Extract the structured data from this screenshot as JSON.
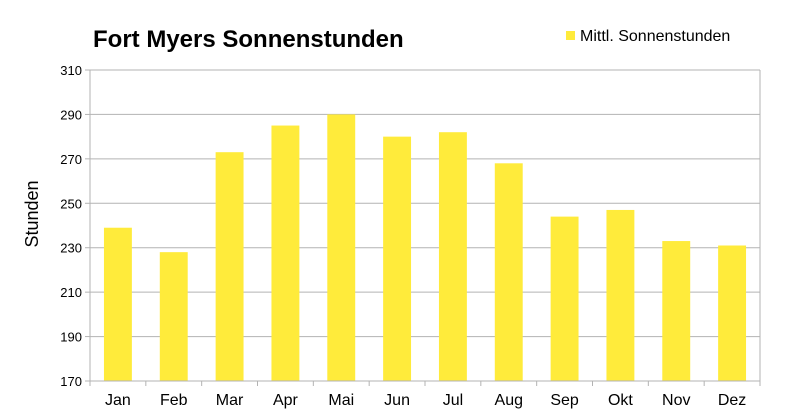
{
  "chart_data": {
    "type": "bar",
    "title": "Fort Myers Sonnenstunden",
    "xlabel": "",
    "ylabel": "Stunden",
    "categories": [
      "Jan",
      "Feb",
      "Mar",
      "Apr",
      "Mai",
      "Jun",
      "Jul",
      "Aug",
      "Sep",
      "Okt",
      "Nov",
      "Dez"
    ],
    "series": [
      {
        "name": "Mittl. Sonnenstunden",
        "color": "#ffeb3b",
        "values": [
          239,
          228,
          273,
          285,
          290,
          280,
          282,
          268,
          244,
          247,
          233,
          231
        ]
      }
    ],
    "ylim": [
      170,
      310
    ],
    "yticks": [
      170,
      190,
      210,
      230,
      250,
      270,
      290,
      310
    ],
    "grid": true,
    "legend_position": "top-right",
    "colors": {
      "bar": "#ffeb3b",
      "grid": "#b3b3b3",
      "axis": "#b3b3b3",
      "background": "#ffffff"
    }
  }
}
